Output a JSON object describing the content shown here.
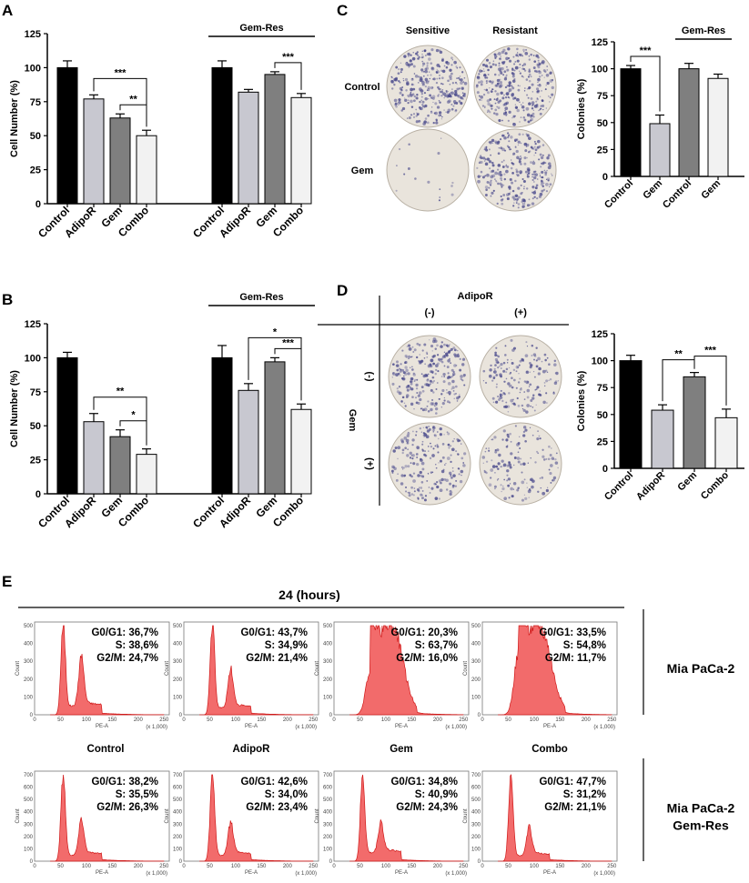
{
  "panels": {
    "A": "A",
    "B": "B",
    "C": "C",
    "D": "D",
    "E": "E"
  },
  "colors": {
    "black": "#000000",
    "light_gray": "#c8c8d0",
    "mid_gray": "#7f7f7f",
    "white_gray": "#f2f2f2",
    "hist_fill": "#f26b6b",
    "hist_line": "#d01818",
    "plate_bg": "#e9e4dc",
    "colony": "#4a4a8c"
  },
  "chart_data": [
    {
      "id": "A",
      "type": "bar",
      "ylabel": "Cell Number (%)",
      "ylim": [
        0,
        125
      ],
      "yticks": [
        0,
        25,
        50,
        75,
        100,
        125
      ],
      "group_label": "Gem-Res",
      "categories": [
        "Control",
        "AdipoR",
        "Gem",
        "Combo",
        "Control",
        "AdipoR",
        "Gem",
        "Combo"
      ],
      "values": [
        100,
        77,
        63,
        50,
        100,
        82,
        95,
        78
      ],
      "errors": [
        5,
        3,
        3,
        4,
        5,
        2,
        2,
        3
      ],
      "significance": [
        {
          "from": 1,
          "to": 3,
          "label": "***"
        },
        {
          "from": 2,
          "to": 3,
          "label": "**"
        },
        {
          "from": 6,
          "to": 7,
          "label": "***"
        }
      ]
    },
    {
      "id": "B",
      "type": "bar",
      "ylabel": "Cell Number (%)",
      "ylim": [
        0,
        125
      ],
      "yticks": [
        0,
        25,
        50,
        75,
        100,
        125
      ],
      "group_label": "Gem-Res",
      "categories": [
        "Control",
        "AdipoR",
        "Gem",
        "Combo",
        "Control",
        "AdipoR",
        "Gem",
        "Combo"
      ],
      "values": [
        100,
        53,
        42,
        29,
        100,
        76,
        97,
        62
      ],
      "errors": [
        4,
        6,
        5,
        4,
        9,
        5,
        3,
        4
      ],
      "significance": [
        {
          "from": 1,
          "to": 3,
          "label": "**"
        },
        {
          "from": 2,
          "to": 3,
          "label": "*"
        },
        {
          "from": 5,
          "to": 7,
          "label": "*"
        },
        {
          "from": 6,
          "to": 7,
          "label": "***"
        }
      ]
    },
    {
      "id": "C",
      "type": "bar",
      "ylabel": "Colonies (%)",
      "ylim": [
        0,
        125
      ],
      "yticks": [
        0,
        25,
        50,
        75,
        100,
        125
      ],
      "group_label": "Gem-Res",
      "categories": [
        "Control",
        "Gem",
        "Control",
        "Gem"
      ],
      "values": [
        100,
        49,
        100,
        91
      ],
      "errors": [
        3,
        8,
        5,
        4
      ],
      "significance": [
        {
          "from": 0,
          "to": 1,
          "label": "***"
        }
      ]
    },
    {
      "id": "D",
      "type": "bar",
      "ylabel": "Colonies (%)",
      "ylim": [
        0,
        125
      ],
      "yticks": [
        0,
        25,
        50,
        75,
        100,
        125
      ],
      "categories": [
        "Control",
        "AdipoR",
        "Gem",
        "Combo"
      ],
      "values": [
        100,
        54,
        85,
        47
      ],
      "errors": [
        5,
        5,
        4,
        8
      ],
      "significance": [
        {
          "from": 1,
          "to": 2,
          "label": "**"
        },
        {
          "from": 2,
          "to": 3,
          "label": "***"
        }
      ]
    }
  ],
  "colony_c": {
    "col_headers": [
      "Sensitive",
      "Resistant"
    ],
    "row_labels": [
      "Control",
      "Gem"
    ],
    "density": [
      [
        1.0,
        1.0
      ],
      [
        0.05,
        0.9
      ]
    ]
  },
  "colony_d": {
    "header": "AdipoR",
    "col_signs": [
      "(-)",
      "(+)"
    ],
    "row_signs": [
      "(-)",
      "(+)"
    ],
    "side_label": "Gem",
    "density": [
      [
        0.8,
        0.55
      ],
      [
        0.65,
        0.45
      ]
    ]
  },
  "flow": {
    "time_label": "24 (hours)",
    "x_axis_label": "PE-A",
    "x_scale_label": "(x 1,000)",
    "y_axis_label": "Count",
    "xticks": [
      "0",
      "50",
      "100",
      "150",
      "200",
      "250"
    ],
    "row_labels": [
      "Mia PaCa-2",
      "Mia PaCa-2\nGem-Res"
    ],
    "row_label_lines": [
      [
        "Mia PaCa-2"
      ],
      [
        "Mia PaCa-2",
        "Gem-Res"
      ]
    ],
    "condition_labels": [
      "Control",
      "AdipoR",
      "Gem",
      "Combo"
    ],
    "yticks_rows": [
      [
        "0",
        "100",
        "200",
        "300",
        "400",
        "500"
      ],
      [
        "0",
        "100",
        "200",
        "300",
        "400",
        "500",
        "600",
        "700"
      ]
    ],
    "histograms": [
      [
        {
          "g0g1": "G0/G1: 36,7%",
          "s": "S: 38,6%",
          "g2m": "G2/M: 24,7%",
          "g1_peak": 1.0,
          "s_level": 0.28,
          "g2_peak": 0.55,
          "shape": "distinct"
        },
        {
          "g0g1": "G0/G1: 43,7%",
          "s": "S: 34,9%",
          "g2m": "G2/M: 21,4%",
          "g1_peak": 1.0,
          "s_level": 0.22,
          "g2_peak": 0.42,
          "shape": "distinct"
        },
        {
          "g0g1": "G0/G1: 20,3%",
          "s": "S: 63,7%",
          "g2m": "G2/M: 16,0%",
          "g1_peak": 0.5,
          "s_level": 0.9,
          "g2_peak": 0.3,
          "shape": "broad"
        },
        {
          "g0g1": "G0/G1: 33,5%",
          "s": "S: 54,8%",
          "g2m": "G2/M: 11,7%",
          "g1_peak": 0.7,
          "s_level": 0.9,
          "g2_peak": 0.28,
          "shape": "broad"
        }
      ],
      [
        {
          "g0g1": "G0/G1: 38,2%",
          "s": "S: 35,5%",
          "g2m": "G2/M: 26,3%",
          "g1_peak": 1.0,
          "s_level": 0.2,
          "g2_peak": 0.4,
          "shape": "distinct"
        },
        {
          "g0g1": "G0/G1: 42,6%",
          "s": "S: 34,0%",
          "g2m": "G2/M: 23,4%",
          "g1_peak": 1.0,
          "s_level": 0.2,
          "g2_peak": 0.36,
          "shape": "distinct"
        },
        {
          "g0g1": "G0/G1: 34,8%",
          "s": "S: 40,9%",
          "g2m": "G2/M: 24,3%",
          "g1_peak": 0.95,
          "s_level": 0.28,
          "g2_peak": 0.34,
          "shape": "distinct"
        },
        {
          "g0g1": "G0/G1: 47,7%",
          "s": "S: 31,2%",
          "g2m": "G2/M: 21,1%",
          "g1_peak": 1.0,
          "s_level": 0.18,
          "g2_peak": 0.32,
          "shape": "distinct"
        }
      ]
    ]
  }
}
